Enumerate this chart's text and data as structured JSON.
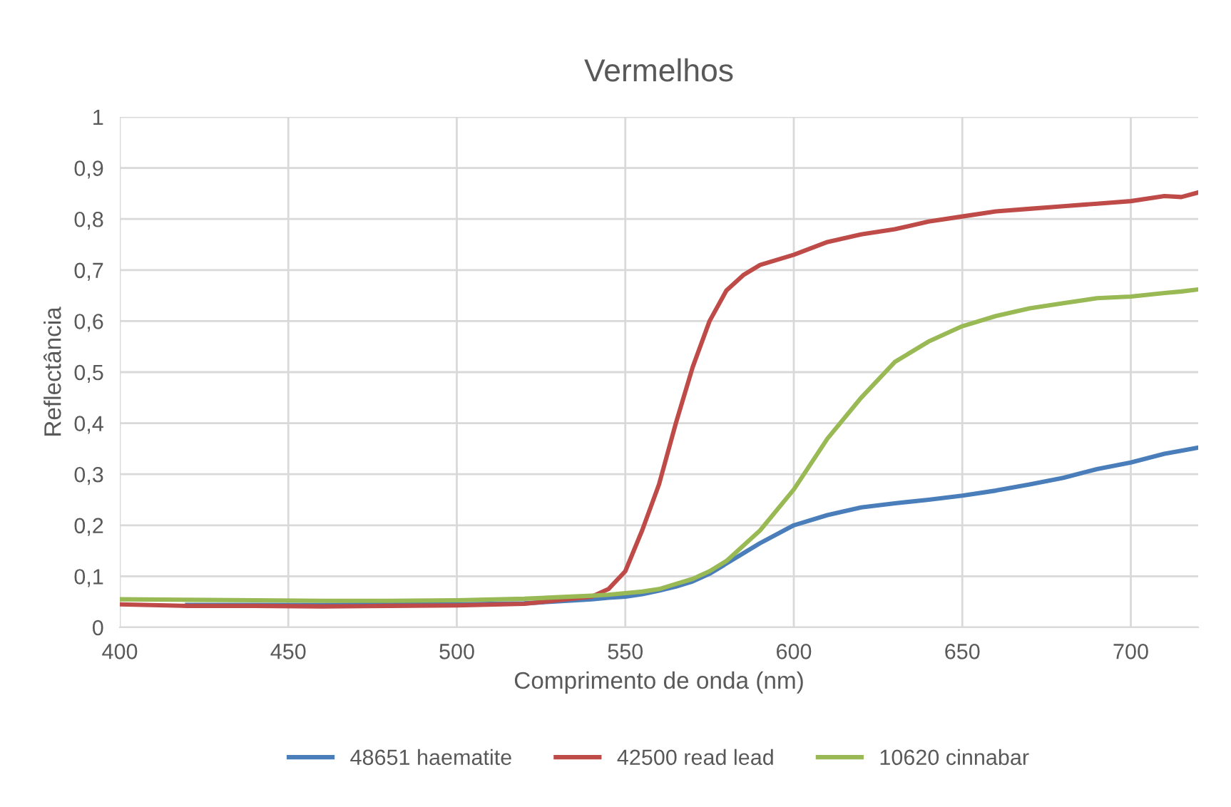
{
  "chart_data": {
    "type": "line",
    "title": "Vermelhos",
    "xlabel": "Comprimento de onda (nm)",
    "ylabel": "Reflectância",
    "x": [
      400,
      420,
      440,
      460,
      480,
      500,
      520,
      540,
      545,
      550,
      555,
      560,
      565,
      570,
      575,
      580,
      585,
      590,
      600,
      610,
      620,
      630,
      640,
      650,
      660,
      670,
      680,
      690,
      700,
      710,
      715,
      720
    ],
    "series": [
      {
        "name": "48651 haematite",
        "color": "#4a7ebb",
        "values": [
          null,
          0.044,
          0.044,
          0.044,
          0.045,
          0.045,
          0.047,
          0.055,
          0.058,
          0.06,
          0.065,
          0.072,
          0.08,
          0.09,
          0.105,
          0.125,
          0.145,
          0.165,
          0.2,
          0.22,
          0.235,
          0.243,
          0.25,
          0.258,
          0.268,
          0.28,
          0.293,
          0.31,
          0.323,
          0.34,
          0.346,
          0.352
        ]
      },
      {
        "name": "42500 read lead",
        "color": "#be4b48",
        "values": [
          0.045,
          0.042,
          0.042,
          0.041,
          0.042,
          0.043,
          0.046,
          0.06,
          0.075,
          0.11,
          0.19,
          0.28,
          0.4,
          0.51,
          0.6,
          0.66,
          0.69,
          0.71,
          0.73,
          0.755,
          0.77,
          0.78,
          0.795,
          0.805,
          0.815,
          0.82,
          0.825,
          0.83,
          0.835,
          0.845,
          0.843,
          0.852
        ]
      },
      {
        "name": "10620 cinnabar",
        "color": "#98b954",
        "values": [
          0.055,
          0.054,
          0.053,
          0.052,
          0.052,
          0.053,
          0.056,
          0.062,
          0.064,
          0.067,
          0.07,
          0.075,
          0.085,
          0.095,
          0.11,
          0.13,
          0.16,
          0.19,
          0.27,
          0.37,
          0.45,
          0.52,
          0.56,
          0.59,
          0.61,
          0.625,
          0.635,
          0.645,
          0.648,
          0.655,
          0.658,
          0.662
        ]
      }
    ],
    "xlim": [
      400,
      720
    ],
    "xticks": [
      400,
      450,
      500,
      550,
      600,
      650,
      700
    ],
    "ylim": [
      0,
      1
    ],
    "yticks": [
      {
        "value": 0,
        "label": "0"
      },
      {
        "value": 0.1,
        "label": "0,1"
      },
      {
        "value": 0.2,
        "label": "0,2"
      },
      {
        "value": 0.3,
        "label": "0,3"
      },
      {
        "value": 0.4,
        "label": "0,4"
      },
      {
        "value": 0.5,
        "label": "0,5"
      },
      {
        "value": 0.6,
        "label": "0,6"
      },
      {
        "value": 0.7,
        "label": "0,7"
      },
      {
        "value": 0.8,
        "label": "0,8"
      },
      {
        "value": 0.9,
        "label": "0,9"
      },
      {
        "value": 1,
        "label": "1"
      }
    ],
    "grid": true,
    "legend": "bottom",
    "marker": "none",
    "line_style": "solid"
  }
}
